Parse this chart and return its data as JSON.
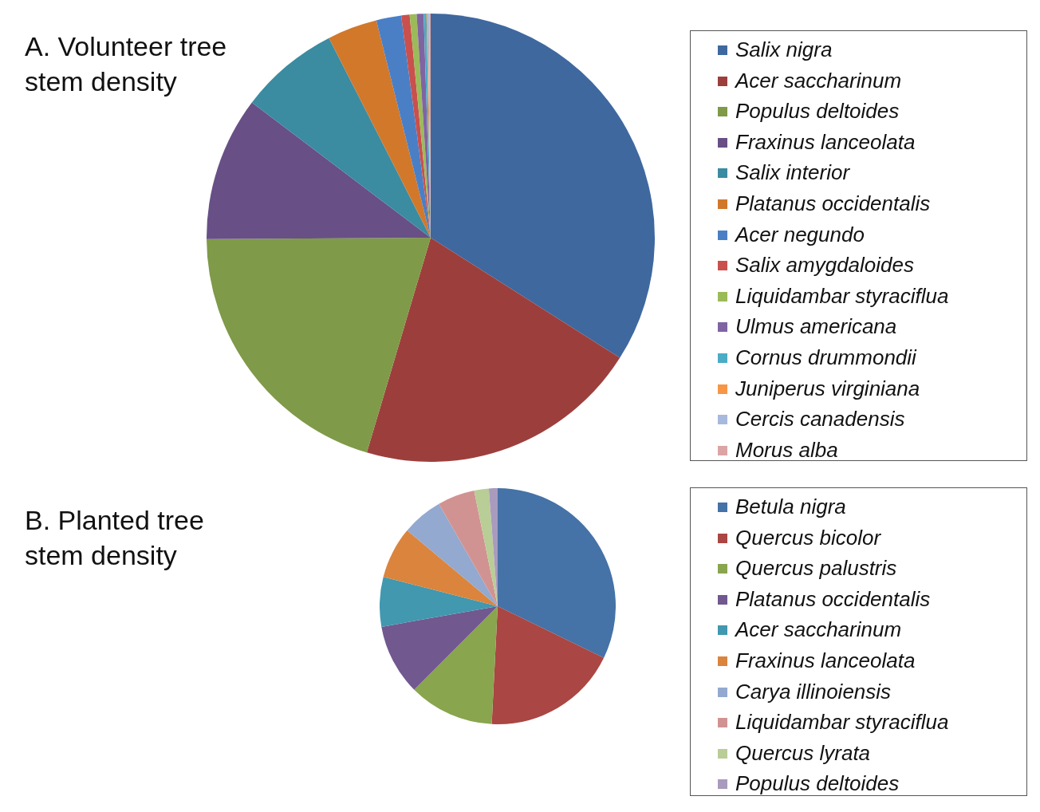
{
  "chart_data": [
    {
      "type": "pie",
      "title": "A. Volunteer tree stem density",
      "legend": "right",
      "categories": [
        "Salix nigra",
        "Acer saccharinum",
        "Populus deltoides",
        "Fraxinus lanceolata",
        "Salix interior",
        "Platanus occidentalis",
        "Acer negundo",
        "Salix amygdaloides",
        "Liquidambar styraciflua",
        "Ulmus americana",
        "Cornus drummondii",
        "Juniperus virginiana",
        "Cercis canadensis",
        "Morus alba"
      ],
      "values": [
        34.0,
        20.6,
        20.3,
        10.4,
        7.2,
        3.6,
        1.8,
        0.6,
        0.5,
        0.5,
        0.2,
        0.1,
        0.1,
        0.1
      ],
      "colors": [
        "#3f689f",
        "#9c3f3c",
        "#7f9a48",
        "#684f86",
        "#3b8ba1",
        "#d2782b",
        "#4a7fc6",
        "#c9504d",
        "#9bbb59",
        "#8064a2",
        "#4bacc6",
        "#f79646",
        "#a7b9dc",
        "#dba5a5"
      ]
    },
    {
      "type": "pie",
      "title": "B. Planted tree stem density",
      "legend": "right",
      "categories": [
        "Betula nigra",
        "Quercus bicolor",
        "Quercus palustris",
        "Platanus occidentalis",
        "Acer saccharinum",
        "Fraxinus lanceolata",
        "Carya illinoiensis",
        "Liquidambar styraciflua",
        "Quercus lyrata",
        "Populus deltoides"
      ],
      "values": [
        32.2,
        18.6,
        11.7,
        9.7,
        6.8,
        7.1,
        5.6,
        5.1,
        2.0,
        1.2
      ],
      "colors": [
        "#4572a7",
        "#aa4643",
        "#89a54e",
        "#71588f",
        "#4198af",
        "#db843d",
        "#93a9cf",
        "#d19392",
        "#b9cd96",
        "#a99bbd"
      ]
    }
  ]
}
